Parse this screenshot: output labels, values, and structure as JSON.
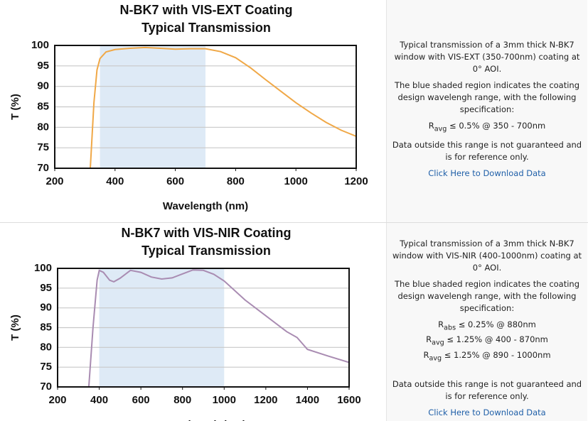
{
  "chart_data": [
    {
      "type": "line",
      "title": [
        "N-BK7 with VIS-EXT Coating",
        "Typical Transmission"
      ],
      "x_label": "Wavelength (nm)",
      "y_label": "T (%)",
      "xlim": [
        200,
        1200
      ],
      "ylim": [
        70,
        100
      ],
      "xticks": [
        200,
        400,
        600,
        800,
        1000,
        1200
      ],
      "yticks": [
        70,
        75,
        80,
        85,
        90,
        95,
        100
      ],
      "grid": true,
      "shaded_range": [
        350,
        700
      ],
      "shade_color": "#deeaf6",
      "x": [
        318,
        330,
        340,
        350,
        370,
        400,
        450,
        500,
        550,
        600,
        650,
        700,
        750,
        800,
        850,
        900,
        950,
        1000,
        1050,
        1100,
        1150,
        1200
      ],
      "series": [
        {
          "color": "#f0a847",
          "values": [
            70,
            86,
            94,
            96.8,
            98.4,
            99,
            99.3,
            99.5,
            99.3,
            99.1,
            99.2,
            99.2,
            98.5,
            97,
            94.5,
            91.6,
            88.8,
            86,
            83.5,
            81.2,
            79.3,
            77.8
          ]
        }
      ]
    },
    {
      "type": "line",
      "title": [
        "N-BK7 with VIS-NIR Coating",
        "Typical Transmission"
      ],
      "x_label": "Wavelength (nm)",
      "y_label": "T (%)",
      "xlim": [
        200,
        1600
      ],
      "ylim": [
        70,
        100
      ],
      "xticks": [
        200,
        400,
        600,
        800,
        1000,
        1200,
        1400,
        1600
      ],
      "yticks": [
        70,
        75,
        80,
        85,
        90,
        95,
        100
      ],
      "grid": true,
      "shaded_range": [
        400,
        1000
      ],
      "shade_color": "#deeaf6",
      "x": [
        350,
        370,
        390,
        400,
        420,
        450,
        470,
        500,
        550,
        600,
        650,
        700,
        750,
        800,
        850,
        900,
        950,
        1000,
        1100,
        1200,
        1300,
        1350,
        1400,
        1500,
        1600
      ],
      "series": [
        {
          "color": "#a98cb2",
          "values": [
            70,
            85,
            97,
            99.5,
            99,
            97,
            96.6,
            97.5,
            99.5,
            99,
            97.8,
            97.3,
            97.6,
            98.6,
            99.6,
            99.5,
            98.5,
            96.8,
            92,
            88,
            84,
            82.5,
            79.5,
            77.8,
            76.2
          ]
        }
      ]
    }
  ],
  "panels": [
    {
      "paragraphs": [
        "Typical transmission of a 3mm thick N-BK7 window with VIS-EXT (350-700nm) coating at 0° AOI.",
        "The blue shaded region indicates the coating design wavelengh range, with the following specification:"
      ],
      "specs": [
        {
          "symbol": "R",
          "sub": "avg",
          "text": "≤ 0.5% @ 350 - 700nm"
        }
      ],
      "note": "Data outside this range is not guaranteed and is for reference only.",
      "link": "Click Here to Download Data"
    },
    {
      "paragraphs": [
        "Typical transmission of a 3mm thick N-BK7 window with VIS-NIR (400-1000nm) coating at 0° AOI.",
        "The blue shaded region indicates the coating design wavelengh range, with the following specification:"
      ],
      "specs": [
        {
          "symbol": "R",
          "sub": "abs",
          "text": "≤ 0.25% @ 880nm"
        },
        {
          "symbol": "R",
          "sub": "avg",
          "text": "≤ 1.25% @ 400 - 870nm"
        },
        {
          "symbol": "R",
          "sub": "avg",
          "text": "≤ 1.25% @ 890 - 1000nm"
        }
      ],
      "note": "Data outside this range is not guaranteed and is for reference only.",
      "link": "Click Here to Download Data"
    }
  ]
}
